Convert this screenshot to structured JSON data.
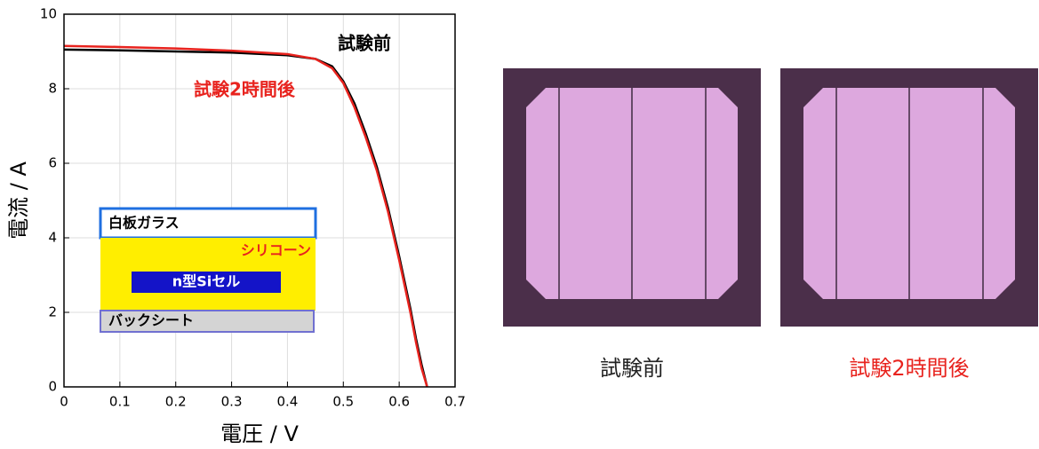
{
  "chart_data": {
    "type": "line",
    "x_label": "電圧 / V",
    "y_label": "電流 / A",
    "x": [
      0,
      0.1,
      0.2,
      0.3,
      0.4,
      0.45,
      0.48,
      0.5,
      0.52,
      0.54,
      0.56,
      0.58,
      0.6,
      0.62,
      0.63,
      0.64,
      0.65
    ],
    "series": [
      {
        "name": "試験前",
        "color": "#000000",
        "values": [
          9.05,
          9.03,
          9.0,
          8.97,
          8.9,
          8.8,
          8.6,
          8.2,
          7.6,
          6.8,
          5.9,
          4.8,
          3.5,
          2.1,
          1.3,
          0.6,
          0
        ]
      },
      {
        "name": "試験2時間後",
        "color": "#e8231e",
        "values": [
          9.15,
          9.12,
          9.08,
          9.02,
          8.93,
          8.8,
          8.55,
          8.15,
          7.5,
          6.7,
          5.8,
          4.7,
          3.4,
          2.0,
          1.2,
          0.5,
          0
        ]
      }
    ],
    "xlim": [
      0,
      0.7
    ],
    "xticks": [
      0,
      0.1,
      0.2,
      0.3,
      0.4,
      0.5,
      0.6,
      0.7
    ],
    "ylim": [
      0,
      10
    ],
    "yticks": [
      0,
      2,
      4,
      6,
      8,
      10
    ],
    "grid": true,
    "inset_layers": [
      "白板ガラス",
      "シリコーン",
      "n型Siセル",
      "バックシート"
    ]
  },
  "photos": [
    {
      "caption": "試験前",
      "color": "#222222"
    },
    {
      "caption": "試験2時間後",
      "color": "#e8231e"
    }
  ]
}
